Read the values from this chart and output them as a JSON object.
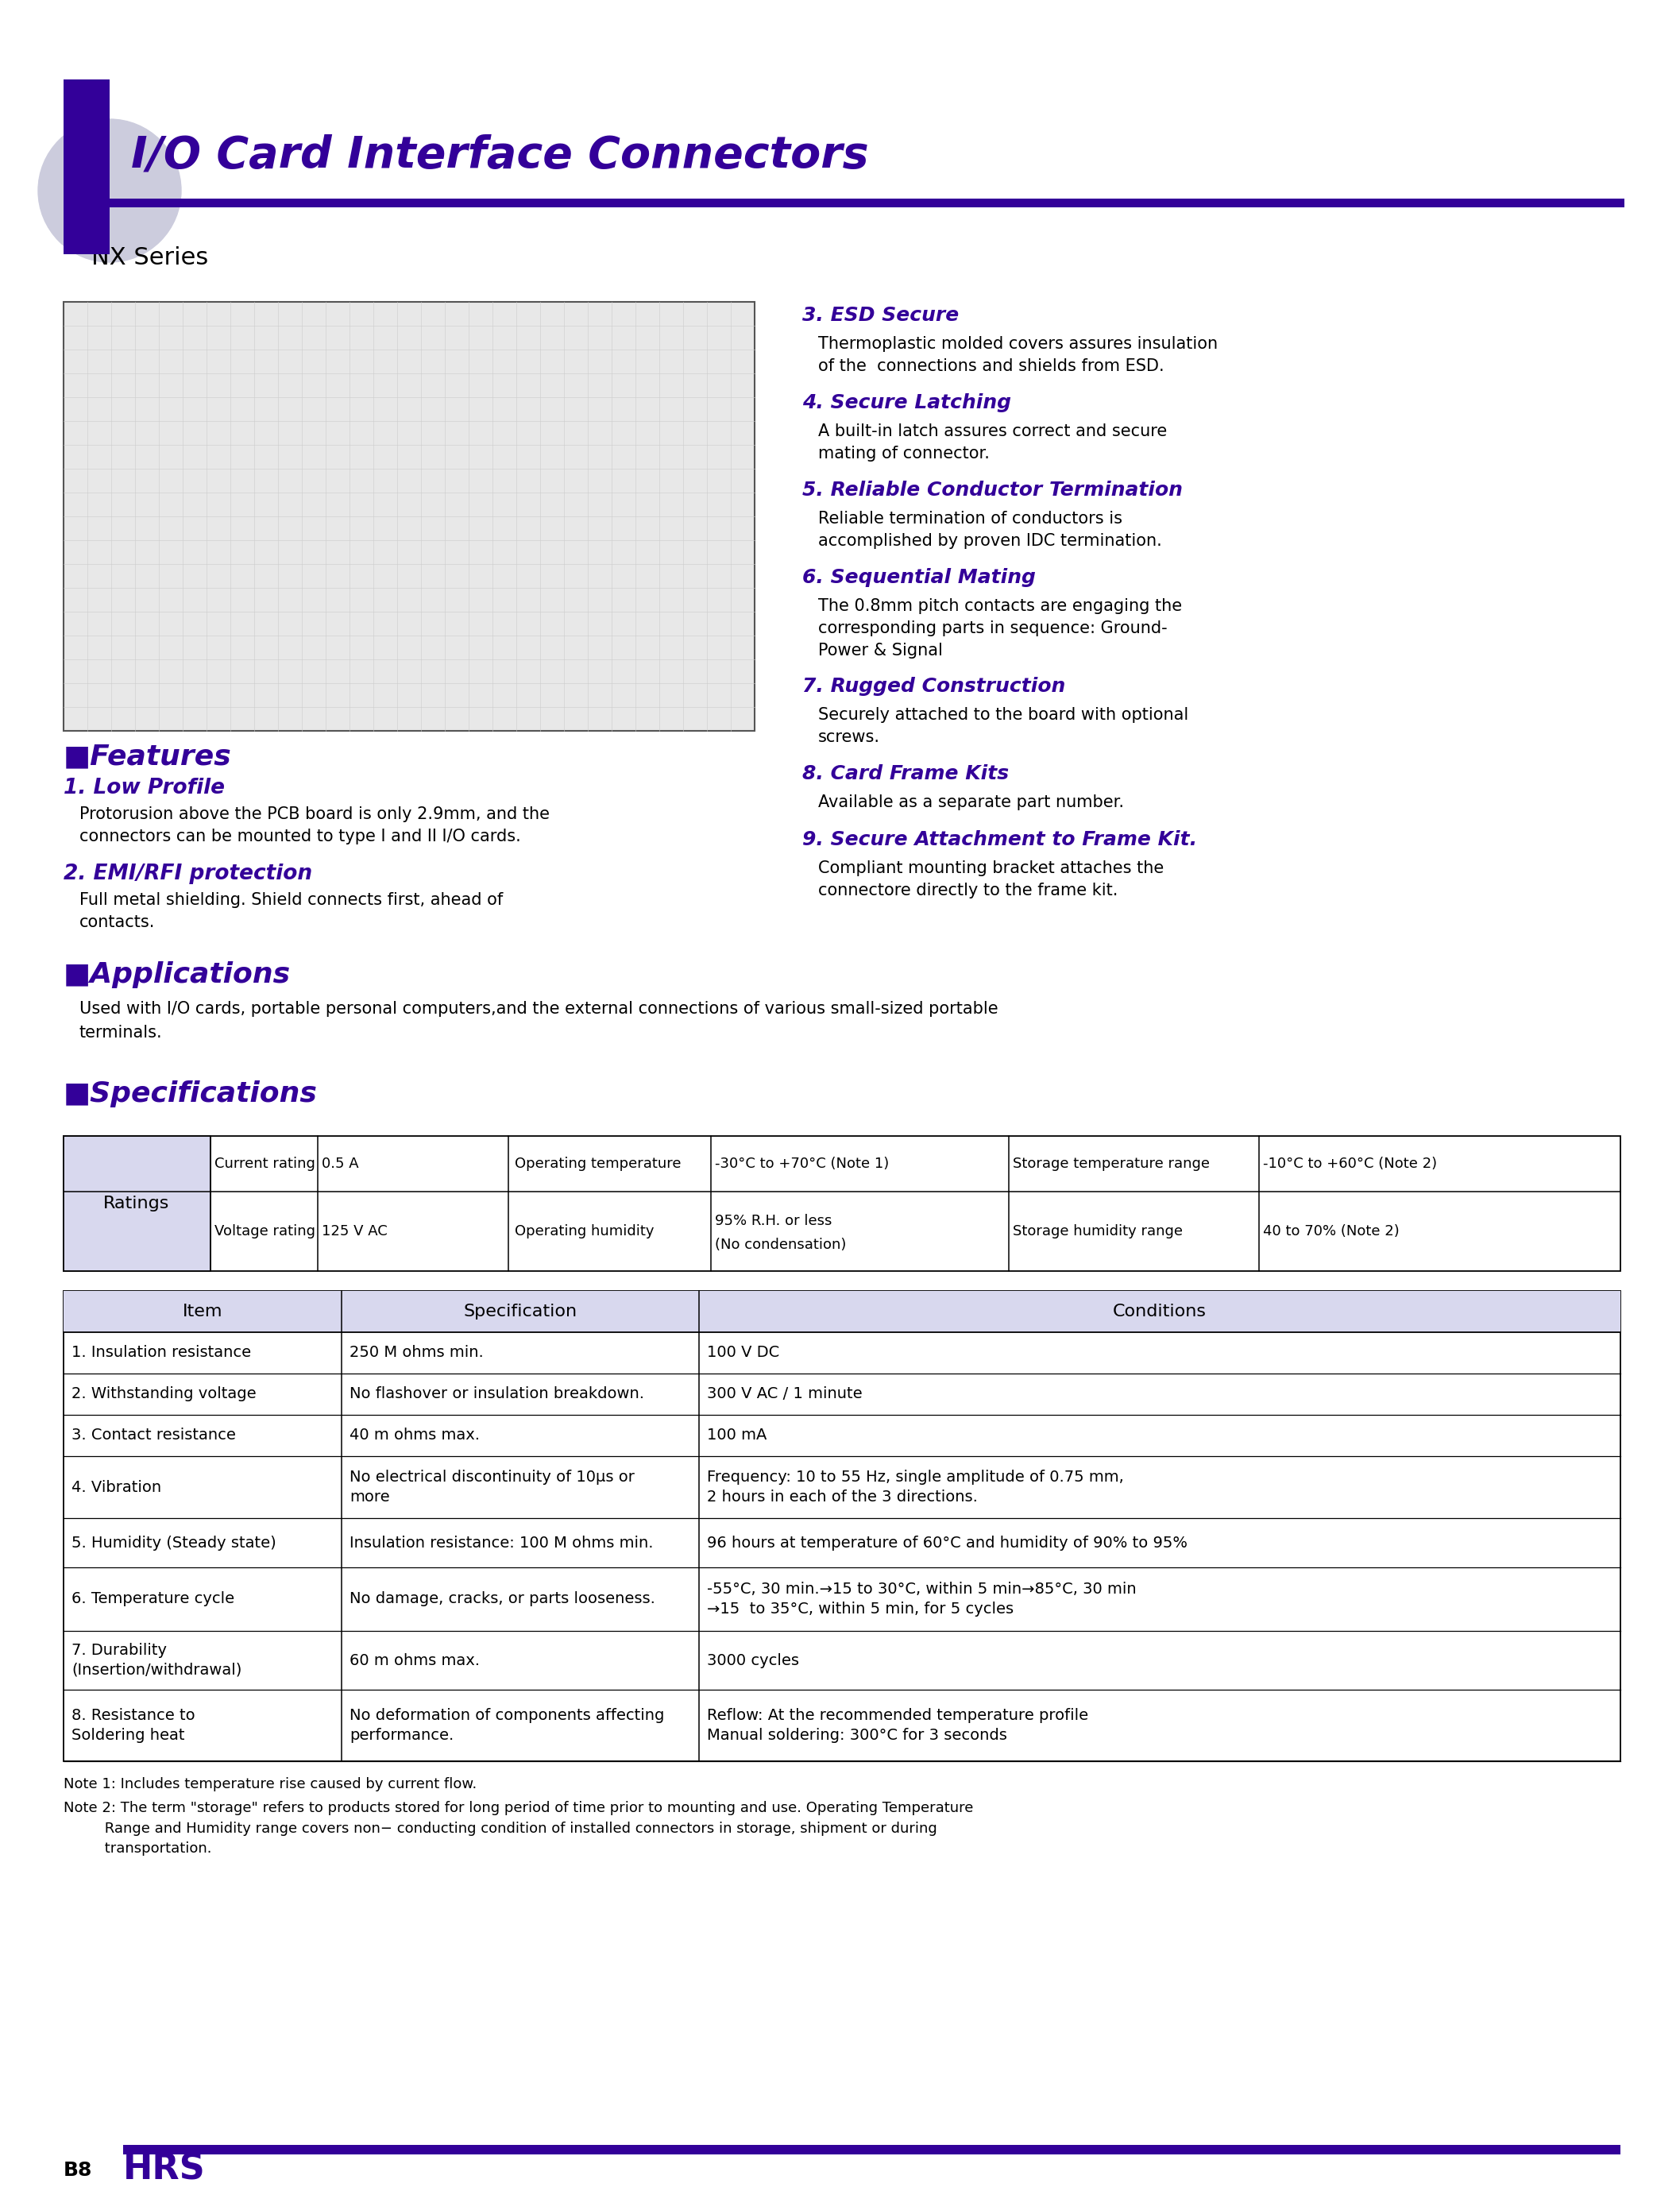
{
  "title": "I/O Card Interface Connectors",
  "subtitle": "NX Series",
  "purple_dark": "#330099",
  "purple_light": "#ccccdd",
  "purple_header_bg": "#d8d8ee",
  "black": "#000000",
  "white": "#ffffff",
  "page_num": "B8",
  "ratings_rows": [
    [
      "Current rating",
      "0.5 A",
      "Operating temperature",
      "-30°C to +70°C (Note 1)",
      "Storage temperature range",
      "-10°C to +60°C (Note 2)"
    ],
    [
      "Voltage rating",
      "125 V AC",
      "Operating humidity",
      "95% R.H. or less\n(No condensation)",
      "Storage humidity range",
      "40 to 70% (Note 2)"
    ]
  ],
  "specs_rows": [
    [
      "1. Insulation resistance",
      "250 M ohms min.",
      "100 V DC"
    ],
    [
      "2. Withstanding voltage",
      "No flashover or insulation breakdown.",
      "300 V AC / 1 minute"
    ],
    [
      "3. Contact resistance",
      "40 m ohms max.",
      "100 mA"
    ],
    [
      "4. Vibration",
      "No electrical discontinuity of 10μs or\nmore",
      "Frequency: 10 to 55 Hz, single amplitude of 0.75 mm,\n2 hours in each of the 3 directions."
    ],
    [
      "5. Humidity (Steady state)",
      "Insulation resistance: 100 M ohms min.",
      "96 hours at temperature of 60°C and humidity of 90% to 95%"
    ],
    [
      "6. Temperature cycle",
      "No damage, cracks, or parts looseness.",
      "-55°C, 30 min.→15 to 30°C, within 5 min→85°C, 30 min\n→15  to 35°C, within 5 min, for 5 cycles"
    ],
    [
      "7. Durability\n(Insertion/withdrawal)",
      "60 m ohms max.",
      "3000 cycles"
    ],
    [
      "8. Resistance to\nSoldering heat",
      "No deformation of components affecting\nperformance.",
      "Reflow: At the recommended temperature profile\nManual soldering: 300°C for 3 seconds"
    ]
  ],
  "notes": [
    "Note 1: Includes temperature rise caused by current flow.",
    "Note 2: The term \"storage\" refers to products stored for long period of time prior to mounting and use. Operating Temperature\n         Range and Humidity range covers non− conducting condition of installed connectors in storage, shipment or during\n         transportation."
  ]
}
